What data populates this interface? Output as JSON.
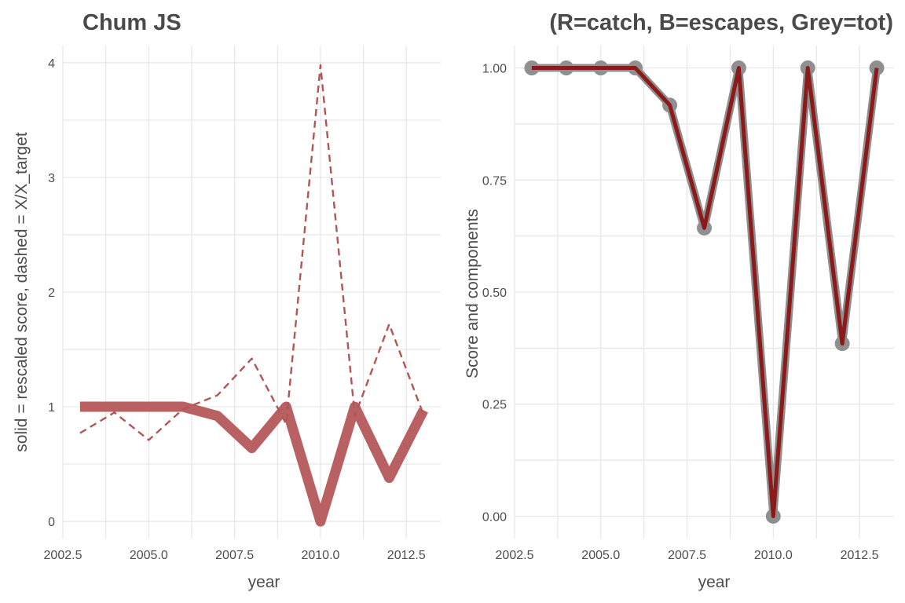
{
  "chart_data": [
    {
      "type": "line",
      "title": "Chum JS",
      "xlabel": "year",
      "ylabel": "solid = rescaled score, dashed = X/X_target",
      "xlim": [
        2002.5,
        2013.5
      ],
      "ylim": [
        -0.15,
        4.15
      ],
      "x_ticks": [
        2002.5,
        2005.0,
        2007.5,
        2010.0,
        2012.5
      ],
      "x_tick_labels": [
        "2002.5",
        "2005.0",
        "2007.5",
        "2010.0",
        "2012.5"
      ],
      "y_ticks": [
        0,
        1,
        2,
        3,
        4
      ],
      "y_tick_labels": [
        "0",
        "1",
        "2",
        "3",
        "4"
      ],
      "grid": true,
      "colors": {
        "solid": "#b86062",
        "dashed": "#b05656"
      },
      "series": [
        {
          "style": "solid",
          "x": [
            2003,
            2004,
            2005,
            2006,
            2007,
            2008,
            2009,
            2010,
            2011,
            2012,
            2013
          ],
          "values": [
            1.0,
            1.0,
            1.0,
            1.0,
            0.92,
            0.64,
            1.0,
            0.0,
            1.0,
            0.38,
            0.97
          ]
        },
        {
          "style": "dashed",
          "x": [
            2003,
            2004,
            2005,
            2006,
            2007,
            2008,
            2009,
            2010,
            2011,
            2012,
            2013
          ],
          "values": [
            0.77,
            0.95,
            0.71,
            0.98,
            1.1,
            1.42,
            0.85,
            3.98,
            0.92,
            1.72,
            0.93
          ]
        }
      ]
    },
    {
      "type": "line",
      "title": "(R=catch, B=escapes, Grey=tot)",
      "xlabel": "year",
      "ylabel": "Score and components",
      "xlim": [
        2002.5,
        2013.5
      ],
      "ylim": [
        -0.05,
        1.05
      ],
      "x_ticks": [
        2002.5,
        2005.0,
        2007.5,
        2010.0,
        2012.5
      ],
      "x_tick_labels": [
        "2002.5",
        "2005.0",
        "2007.5",
        "2010.0",
        "2012.5"
      ],
      "y_ticks": [
        0,
        0.25,
        0.5,
        0.75,
        1.0
      ],
      "y_tick_labels": [
        "0.00",
        "0.25",
        "0.50",
        "0.75",
        "1.00"
      ],
      "grid": true,
      "colors": {
        "total": "#8f8f8f",
        "catch": "#8b1a1a"
      },
      "series": [
        {
          "style": "total",
          "markers": true,
          "x": [
            2003,
            2004,
            2005,
            2006,
            2007,
            2008,
            2009,
            2010,
            2011,
            2012,
            2013
          ],
          "values": [
            1.0,
            1.0,
            1.0,
            1.0,
            0.917,
            0.643,
            1.0,
            0.0,
            1.0,
            0.385,
            1.0
          ]
        },
        {
          "style": "catch",
          "markers": false,
          "x": [
            2003,
            2004,
            2005,
            2006,
            2007,
            2008,
            2009,
            2010,
            2011,
            2012,
            2013
          ],
          "values": [
            1.0,
            1.0,
            1.0,
            1.0,
            0.917,
            0.643,
            1.0,
            0.0,
            1.0,
            0.385,
            1.0
          ]
        }
      ]
    }
  ]
}
